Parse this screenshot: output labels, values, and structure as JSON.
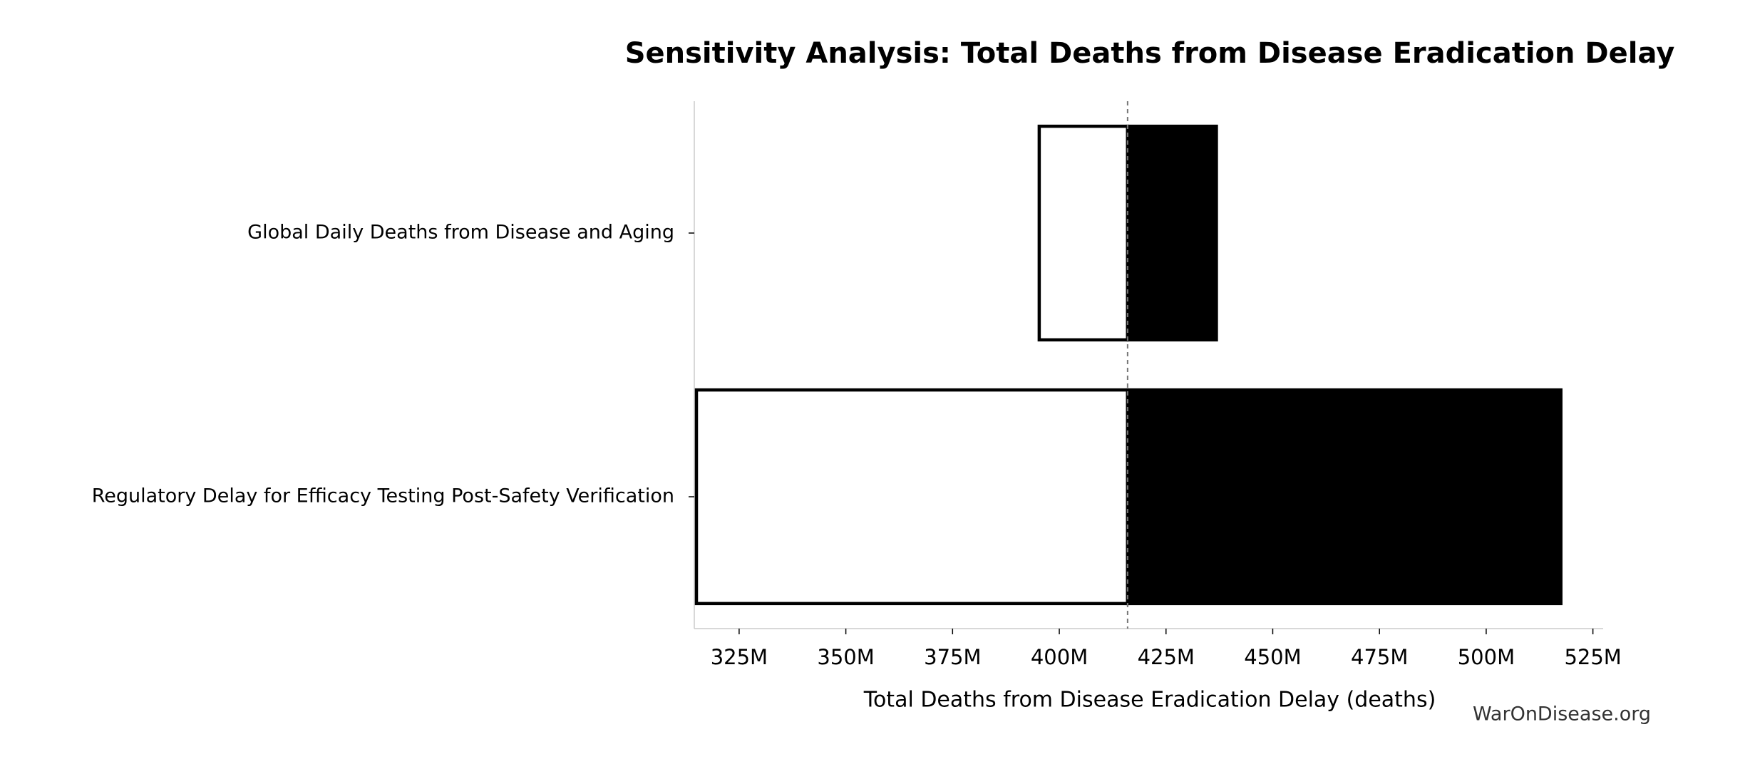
{
  "chart_data": {
    "type": "tornado",
    "title": "Sensitivity Analysis: Total Deaths from Disease Eradication Delay",
    "xlabel": "Total Deaths from Disease Eradication Delay (deaths)",
    "watermark": "WarOnDisease.org",
    "categories": [
      "Global Daily Deaths from Disease and Aging",
      "Regulatory Delay for Efficacy Testing Post-Safety Verification"
    ],
    "baseline": 416000000,
    "series": [
      {
        "color": "#ffffff",
        "values": [
          395300000,
          315000000
        ]
      },
      {
        "color": "#000000",
        "values": [
          436800000,
          517500000
        ]
      }
    ],
    "xlim": [
      314500000,
      527400000
    ],
    "xticks": [
      {
        "value": 325000000,
        "label": "325M"
      },
      {
        "value": 350000000,
        "label": "350M"
      },
      {
        "value": 375000000,
        "label": "375M"
      },
      {
        "value": 400000000,
        "label": "400M"
      },
      {
        "value": 425000000,
        "label": "425M"
      },
      {
        "value": 450000000,
        "label": "450M"
      },
      {
        "value": 475000000,
        "label": "475M"
      },
      {
        "value": 500000000,
        "label": "500M"
      },
      {
        "value": 525000000,
        "label": "525M"
      }
    ]
  }
}
